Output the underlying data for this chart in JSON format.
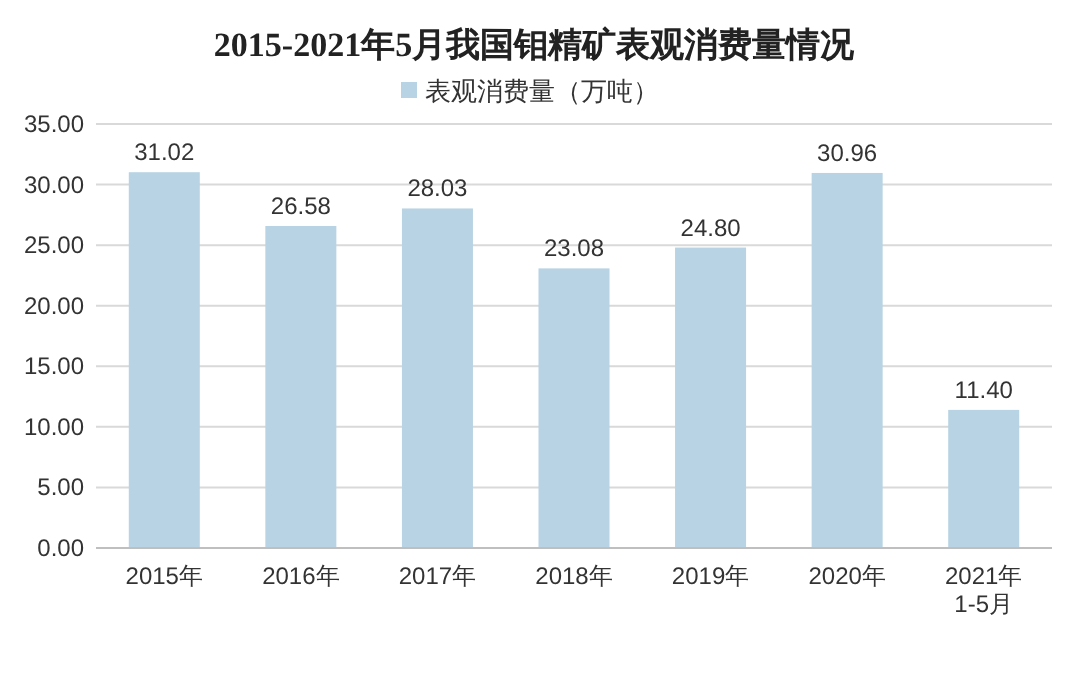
{
  "chart_data": {
    "type": "bar",
    "title": "2015-2021年5月我国钼精矿表观消费量情况",
    "categories": [
      "2015年",
      "2016年",
      "2017年",
      "2018年",
      "2019年",
      "2020年",
      "2021年\n1-5月"
    ],
    "series": [
      {
        "name": "表观消费量（万吨）",
        "color": "#b8d3e3",
        "values": [
          31.02,
          26.58,
          28.03,
          23.08,
          24.8,
          30.96,
          11.4
        ],
        "value_labels": [
          "31.02",
          "26.58",
          "28.03",
          "23.08",
          "24.80",
          "30.96",
          "11.40"
        ]
      }
    ],
    "ylim": [
      0,
      35
    ],
    "yticks": [
      {
        "value": 0,
        "label": "0.00"
      },
      {
        "value": 5,
        "label": "5.00"
      },
      {
        "value": 10,
        "label": "10.00"
      },
      {
        "value": 15,
        "label": "15.00"
      },
      {
        "value": 20,
        "label": "20.00"
      },
      {
        "value": 25,
        "label": "25.00"
      },
      {
        "value": 30,
        "label": "30.00"
      },
      {
        "value": 35,
        "label": "35.00"
      }
    ],
    "grid": "y",
    "legend": "top"
  }
}
